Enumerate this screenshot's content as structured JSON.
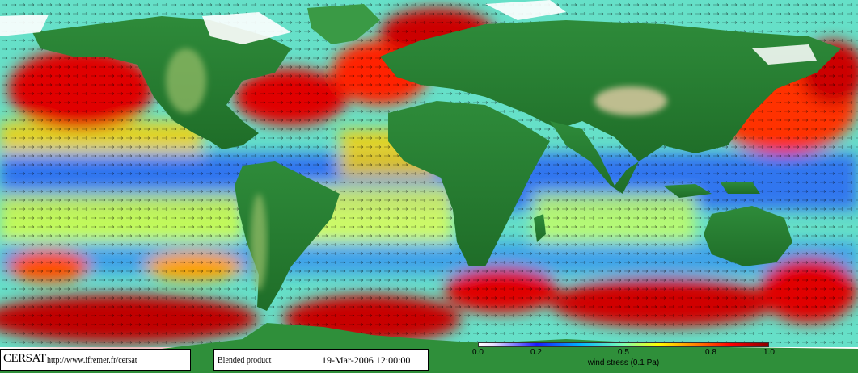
{
  "map": {
    "projection": "equirectangular-world",
    "layers": [
      "land-relief",
      "wind-stress-color",
      "wind-vector-arrows"
    ],
    "colors": {
      "land_low": "#1f7a2a",
      "land_high": "#d6c8a0",
      "ice": "#ffffff",
      "stress_low": "#1a1aff",
      "stress_mid": "#ffff00",
      "stress_high": "#8b0000"
    }
  },
  "footer": {
    "brand": "CERSAT",
    "url": "http://www.ifremer.fr/cersat",
    "product": "Blended product",
    "datetime": "19-Mar-2006 12:00:00"
  },
  "scale": {
    "title": "wind stress (0.1 Pa)",
    "ticks": [
      "0.0",
      "0.2",
      "0.5",
      "0.8",
      "1.0"
    ],
    "tick_values": [
      0.0,
      0.2,
      0.5,
      0.8,
      1.0
    ],
    "range": [
      0.0,
      1.0
    ]
  }
}
